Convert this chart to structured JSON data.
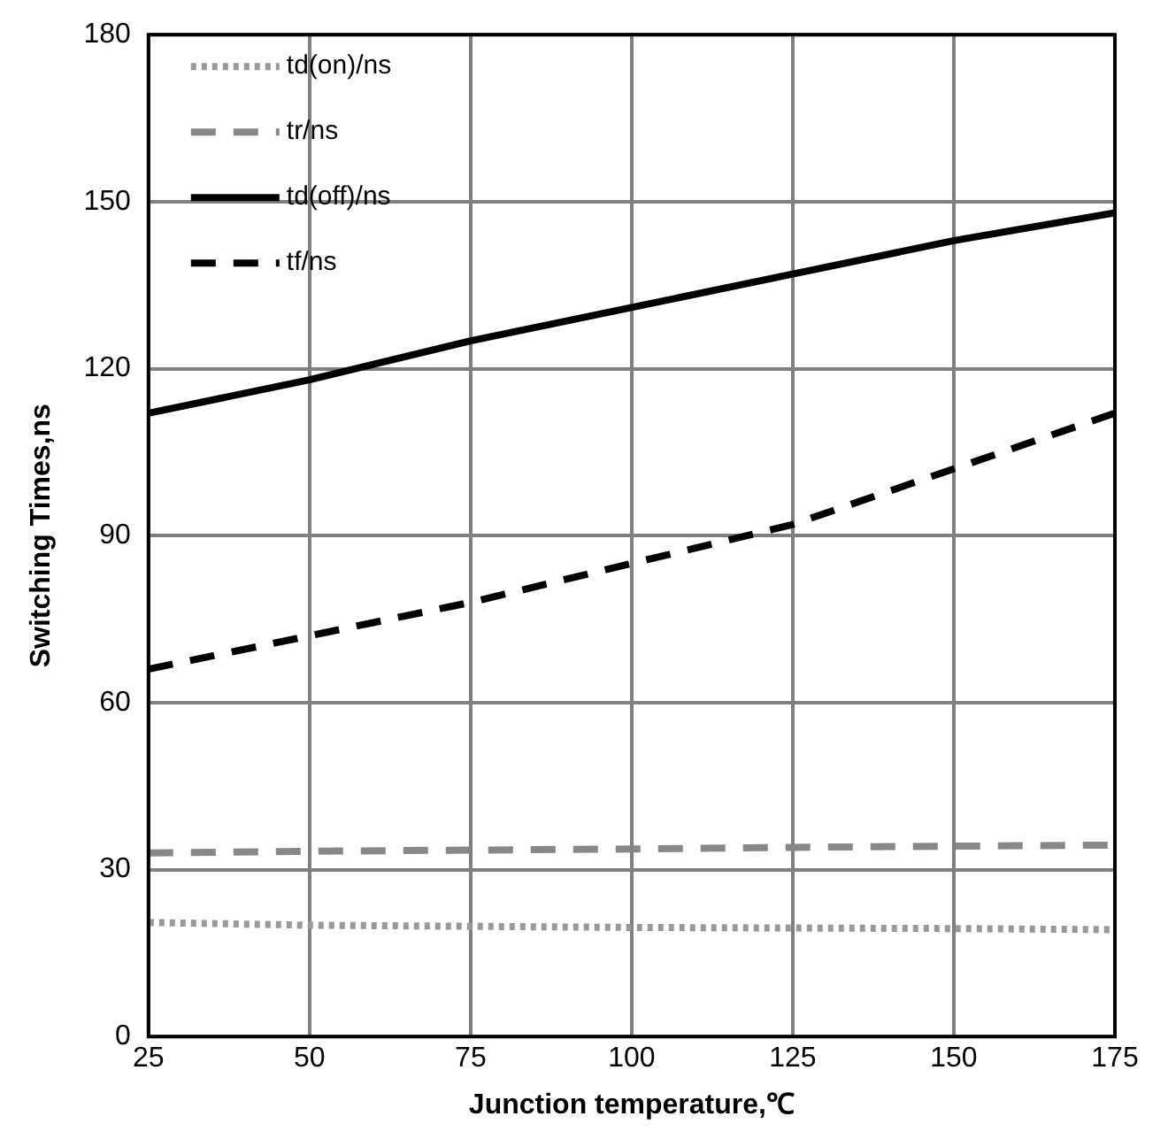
{
  "chart_data": {
    "type": "line",
    "xlabel": "Junction temperature,℃",
    "ylabel": "Switching Times,ns",
    "x": [
      25,
      50,
      75,
      100,
      125,
      150,
      175
    ],
    "series": [
      {
        "name": "td(on)/ns",
        "color": "#999999",
        "line_style": "dotted",
        "values": [
          20.5,
          20,
          19.8,
          19.6,
          19.5,
          19.4,
          19.2
        ]
      },
      {
        "name": "tr/ns",
        "color": "#888888",
        "line_style": "dashed",
        "values": [
          33,
          33.3,
          33.5,
          33.7,
          34,
          34.2,
          34.4
        ]
      },
      {
        "name": "td(off)/ns",
        "color": "#000000",
        "line_style": "solid",
        "values": [
          112,
          118,
          125,
          131,
          137,
          143,
          148
        ]
      },
      {
        "name": "tf/ns",
        "color": "#000000",
        "line_style": "dashed",
        "values": [
          66,
          72,
          78,
          85,
          92,
          102,
          112
        ]
      }
    ],
    "xlim": [
      25,
      175
    ],
    "xticks": [
      25,
      50,
      75,
      100,
      125,
      150,
      175
    ],
    "ylim": [
      0,
      180
    ],
    "yticks": [
      0,
      30,
      60,
      90,
      120,
      150,
      180
    ],
    "grid": true,
    "legend": "top left",
    "marker": "none"
  }
}
